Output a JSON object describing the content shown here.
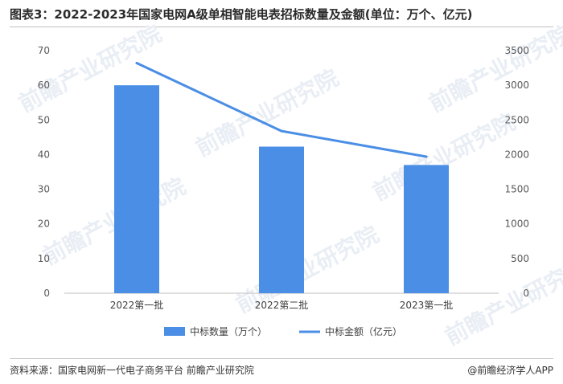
{
  "page": {
    "title": "图表3：2022-2023年国家电网A级单相智能电表招标数量及金额(单位：万个、亿元)",
    "watermark": "前瞻产业研究院",
    "source": "资料来源：国家电网新一代电子商务平台 前瞻产业研究院",
    "brand": "@前瞻经济学人APP"
  },
  "chart_data": {
    "type": "bar",
    "categories": [
      "2022第一批",
      "2022第二批",
      "2023第一批"
    ],
    "series": [
      {
        "name": "中标数量（万个）",
        "type": "bar",
        "axis": "left",
        "values": [
          60,
          42.3,
          37
        ],
        "color": "#4a8ee6"
      },
      {
        "name": "中标金额（亿元）",
        "type": "line",
        "axis": "right",
        "values": [
          3320,
          2340,
          1970
        ],
        "color": "#4a8ee6"
      }
    ],
    "y_left": {
      "min": 0,
      "max": 70,
      "ticks": [
        0,
        10,
        20,
        30,
        40,
        50,
        60,
        70
      ]
    },
    "y_right": {
      "min": 0,
      "max": 3500,
      "ticks": [
        0,
        500,
        1000,
        1500,
        2000,
        2500,
        3000,
        3500
      ]
    },
    "grid": false,
    "legend_position": "bottom"
  }
}
